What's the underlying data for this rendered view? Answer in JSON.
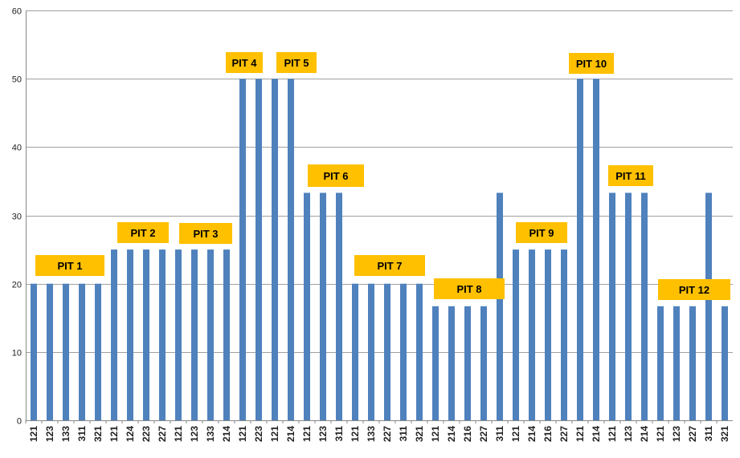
{
  "chart_data": {
    "type": "bar",
    "title": "",
    "xlabel": "",
    "ylabel": "",
    "ylim": [
      0,
      60
    ],
    "yticks": [
      0,
      10,
      20,
      30,
      40,
      50,
      60
    ],
    "grid": true,
    "bar_color": "#4F81BD",
    "label_color": "#FFC000",
    "categories": [
      "121",
      "123",
      "133",
      "311",
      "321",
      "121",
      "124",
      "223",
      "227",
      "121",
      "123",
      "133",
      "214",
      "121",
      "223",
      "121",
      "214",
      "121",
      "123",
      "311",
      "121",
      "133",
      "227",
      "311",
      "321",
      "121",
      "214",
      "216",
      "227",
      "311",
      "121",
      "214",
      "216",
      "227",
      "121",
      "214",
      "121",
      "123",
      "214",
      "121",
      "123",
      "227",
      "311",
      "321"
    ],
    "values": [
      20,
      20,
      20,
      20,
      20,
      25,
      25,
      25,
      25,
      25,
      25,
      25,
      25,
      50,
      50,
      50,
      50,
      33.3,
      33.3,
      33.3,
      20,
      20,
      20,
      20,
      20,
      16.7,
      16.7,
      16.7,
      16.7,
      33.3,
      25,
      25,
      25,
      25,
      50,
      50,
      33.3,
      33.3,
      33.3,
      16.7,
      16.7,
      16.7,
      33.3,
      16.7
    ],
    "annotations": [
      {
        "text": "PIT  1"
      },
      {
        "text": "PIT  2"
      },
      {
        "text": "PIT 3"
      },
      {
        "text": "PIT 4"
      },
      {
        "text": "PIT 5"
      },
      {
        "text": "PIT 6"
      },
      {
        "text": "PIT 7"
      },
      {
        "text": "PIT 8"
      },
      {
        "text": "PIT 9"
      },
      {
        "text": "PIT 10"
      },
      {
        "text": "PIT 11"
      },
      {
        "text": "PIT 12"
      }
    ]
  }
}
